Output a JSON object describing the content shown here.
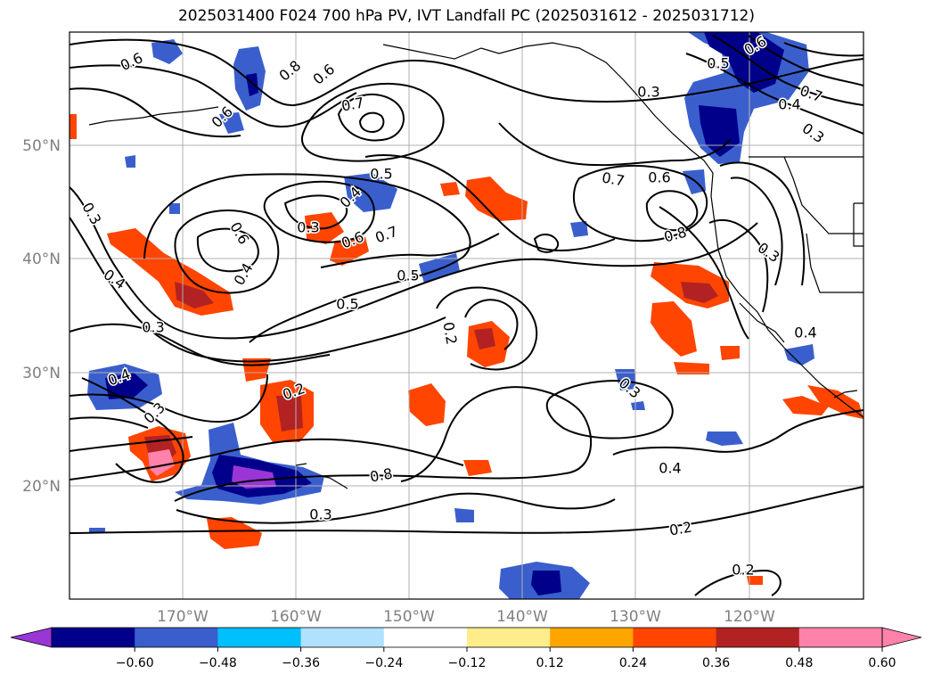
{
  "title": "2025031400 F024 700 hPa PV, IVT Landfall PC (2025031612 - 2025031712)",
  "lat_labels": [
    "50°N",
    "40°N",
    "30°N",
    "20°N"
  ],
  "lon_labels": [
    "170°W",
    "160°W",
    "150°W",
    "140°W",
    "130°W",
    "120°W"
  ],
  "contour_labels": [
    "0.6",
    "0.8",
    "0.6",
    "0.7",
    "0.5",
    "0.6",
    "0.4",
    "0.3",
    "0.6",
    "0.7",
    "0.4",
    "0.5",
    "0.3",
    "0.4",
    "0.3",
    "0.2",
    "0.7",
    "0.6",
    "0.8",
    "0.3",
    "0.3",
    "0.4",
    "0.6",
    "0.5",
    "0.2",
    "0.4",
    "0.3",
    "0.3",
    "0.4",
    "0.2",
    "0.2",
    "0.3",
    "0.8",
    "0.6",
    "0.5",
    "0.7",
    "0.3",
    "0.4"
  ],
  "colorbar": {
    "tick_labels": [
      "−0.60",
      "−0.48",
      "−0.36",
      "−0.24",
      "−0.12",
      "0.12",
      "0.24",
      "0.36",
      "0.48",
      "0.60"
    ],
    "colors": [
      "#9a35d6",
      "#00008b",
      "#3a5fcd",
      "#00bfff",
      "#b0e2ff",
      "#ffffff",
      "#ffec8b",
      "#ffa500",
      "#ff4500",
      "#b22222",
      "#ff82ab",
      "#ff82ab"
    ]
  },
  "colors": {
    "grid": "#b0b0b0",
    "contour": "#000000",
    "coast": "#000000"
  }
}
